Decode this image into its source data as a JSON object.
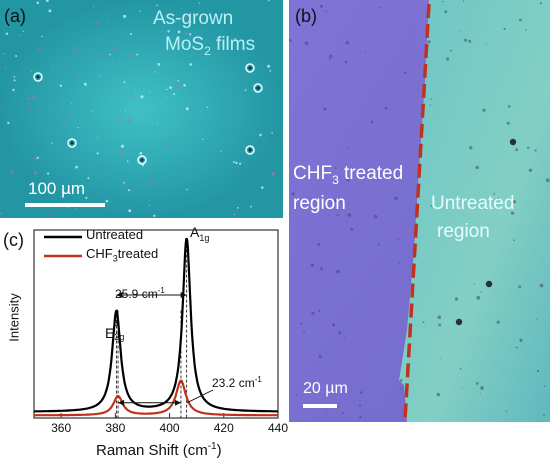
{
  "panel_a": {
    "label": "(a)",
    "title_line1": "As-grown",
    "title_line2_main": "MoS",
    "title_line2_sub": "2",
    "title_line2_rest": " films",
    "scale_bar": "100 µm"
  },
  "panel_b": {
    "label": "(b)",
    "treated_line1_main": "CHF",
    "treated_line1_sub": "3",
    "treated_line1_rest": " treated",
    "treated_line2": "region",
    "untreated_line1": "Untreated",
    "untreated_line2": "region",
    "scale_bar": "20 µm"
  },
  "panel_c": {
    "label": "(c)",
    "legend_untreated": "Untreated",
    "legend_treated_main": "CHF",
    "legend_treated_sub": "3",
    "legend_treated_rest": "treated",
    "peak_e_main": "E",
    "peak_e_sup": "1",
    "peak_e_sub": "2g",
    "peak_a_main": "A",
    "peak_a_sub": "1g",
    "delta_untreated": "25.9 cm",
    "delta_untreated_sup": "-1",
    "delta_treated": "23.2 cm",
    "delta_treated_sup": "-1",
    "xlabel_main": "Raman Shift (cm",
    "xlabel_sup": "-1",
    "xlabel_end": ")",
    "ylabel": "Intensity"
  },
  "colors": {
    "untreated": "#000000",
    "treated": "#c0321e",
    "film": "#27a9b2",
    "treated_region": "#7c74d4",
    "untreated_region": "#74c8c4",
    "boundary": "#c0321e"
  },
  "chart_data": {
    "type": "line",
    "xlabel": "Raman Shift (cm-1)",
    "ylabel": "Intensity",
    "xlim": [
      350,
      440
    ],
    "xticks": [
      360,
      380,
      400,
      420,
      440
    ],
    "series": [
      {
        "name": "Untreated",
        "peaks": [
          {
            "center": 380.4,
            "height": 0.58,
            "width": 1.9
          },
          {
            "center": 406.3,
            "height": 1.0,
            "width": 1.8
          }
        ]
      },
      {
        "name": "CHF3treated",
        "peaks": [
          {
            "center": 381.0,
            "height": 0.11,
            "width": 2.1
          },
          {
            "center": 404.2,
            "height": 0.2,
            "width": 2.2
          }
        ]
      }
    ],
    "annotations": [
      {
        "text": "25.9 cm-1",
        "from": 380.4,
        "to": 406.3
      },
      {
        "text": "23.2 cm-1",
        "from": 381.0,
        "to": 404.2
      }
    ]
  }
}
